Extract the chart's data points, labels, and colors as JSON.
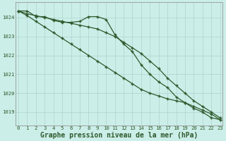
{
  "title": "Graphe pression niveau de la mer (hPa)",
  "xlabel": "Graphe pression niveau de la mer (hPa)",
  "background_color": "#cceee8",
  "grid_color": "#aad4ce",
  "line_color": "#2d5a2d",
  "x": [
    0,
    1,
    2,
    3,
    4,
    5,
    6,
    7,
    8,
    9,
    10,
    11,
    12,
    13,
    14,
    15,
    16,
    17,
    18,
    19,
    20,
    21,
    22,
    23
  ],
  "line1": [
    1024.35,
    1024.35,
    1024.05,
    1024.05,
    1023.85,
    1023.75,
    1023.75,
    1023.8,
    1024.05,
    1024.05,
    1023.9,
    1023.1,
    1022.6,
    1022.2,
    1021.5,
    1021.0,
    1020.6,
    1020.3,
    1019.8,
    1019.5,
    1019.2,
    1019.0,
    1018.7,
    1018.6
  ],
  "line2": [
    1024.35,
    1024.2,
    1024.1,
    1024.0,
    1023.9,
    1023.8,
    1023.7,
    1023.6,
    1023.5,
    1023.4,
    1023.2,
    1023.0,
    1022.7,
    1022.4,
    1022.1,
    1021.7,
    1021.3,
    1020.8,
    1020.4,
    1020.0,
    1019.6,
    1019.3,
    1019.0,
    1018.7
  ],
  "line3": [
    1024.35,
    1024.1,
    1023.8,
    1023.5,
    1023.2,
    1022.9,
    1022.6,
    1022.3,
    1022.0,
    1021.7,
    1021.4,
    1021.1,
    1020.8,
    1020.5,
    1020.2,
    1020.0,
    1019.85,
    1019.7,
    1019.6,
    1019.5,
    1019.3,
    1019.1,
    1018.9,
    1018.6
  ],
  "ylim_min": 1018.3,
  "ylim_max": 1024.8,
  "yticks": [
    1019,
    1020,
    1021,
    1022,
    1023,
    1024
  ],
  "xticks": [
    0,
    1,
    2,
    3,
    4,
    5,
    6,
    7,
    8,
    9,
    10,
    11,
    12,
    13,
    14,
    15,
    16,
    17,
    18,
    19,
    20,
    21,
    22,
    23
  ],
  "tick_label_fontsize": 5.2,
  "xlabel_fontsize": 7.0,
  "marker": "+",
  "marker_size": 3.5,
  "marker_edge_width": 1.0,
  "line_width": 0.9
}
